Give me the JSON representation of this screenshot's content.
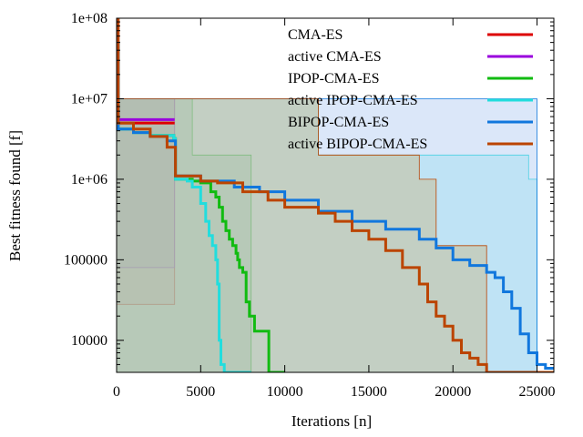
{
  "chart_data": {
    "type": "line",
    "title": "",
    "xlabel": "Iterations [n]",
    "ylabel": "Best fitness found [f]",
    "xlim": [
      0,
      26000
    ],
    "ylim": [
      4000,
      100000000
    ],
    "yscale": "log",
    "grid": false,
    "legend_position": "top-right",
    "x_ticks": [
      {
        "value": 0,
        "label": "0"
      },
      {
        "value": 5000,
        "label": "5000"
      },
      {
        "value": 10000,
        "label": "10000"
      },
      {
        "value": 15000,
        "label": "15000"
      },
      {
        "value": 20000,
        "label": "20000"
      },
      {
        "value": 25000,
        "label": "25000"
      }
    ],
    "y_ticks": [
      {
        "value": 10000,
        "label": "10000"
      },
      {
        "value": 100000,
        "label": "100000"
      },
      {
        "value": 1000000,
        "label": "1e+06"
      },
      {
        "value": 10000000,
        "label": "1e+07"
      },
      {
        "value": 100000000,
        "label": "1e+08"
      }
    ],
    "series": [
      {
        "name": "CMA-ES",
        "color": "#dd0000",
        "x": [
          0,
          50,
          3450
        ],
        "y": [
          50000000,
          5000000,
          5000000
        ],
        "band_color": "#ee88aa",
        "band_upper": {
          "x": [
            0,
            3450
          ],
          "y": [
            10000000,
            10000000
          ]
        },
        "band_lower": {
          "x": [
            0,
            3450
          ],
          "y": [
            28000,
            28000
          ]
        }
      },
      {
        "name": "active CMA-ES",
        "color": "#9900dd",
        "x": [
          0,
          50,
          3450
        ],
        "y": [
          50000000,
          5500000,
          5500000
        ],
        "band_color": "#cc99ee",
        "band_upper": {
          "x": [
            0,
            3450
          ],
          "y": [
            10000000,
            10000000
          ]
        },
        "band_lower": {
          "x": [
            0,
            3450
          ],
          "y": [
            80000,
            80000
          ]
        }
      },
      {
        "name": "IPOP-CMA-ES",
        "color": "#11bb11",
        "x": [
          0,
          100,
          1000,
          2000,
          3400,
          3500,
          4500,
          5000,
          5600,
          5900,
          6100,
          6300,
          6500,
          6700,
          6900,
          7100,
          7200,
          7300,
          7500,
          7700,
          7900,
          8200,
          9000,
          9050,
          9200,
          10000
        ],
        "y": [
          50000000,
          4200000,
          3800000,
          3500000,
          3200000,
          1000000,
          950000,
          900000,
          700000,
          600000,
          450000,
          300000,
          230000,
          180000,
          150000,
          120000,
          100000,
          80000,
          70000,
          30000,
          20000,
          13000,
          13000,
          4000,
          4000,
          4000
        ],
        "band_color": "#88cc88",
        "band_upper": {
          "x": [
            0,
            4500,
            7700,
            8000
          ],
          "y": [
            10000000,
            2000000,
            2000000,
            10000
          ]
        },
        "band_lower": {
          "x": [
            0,
            4500,
            7700,
            8000
          ],
          "y": [
            4000,
            4000,
            4000,
            4000
          ]
        }
      },
      {
        "name": "active IPOP-CMA-ES",
        "color": "#22dddd",
        "x": [
          0,
          100,
          1000,
          2000,
          3400,
          3500,
          4200,
          4500,
          5000,
          5300,
          5500,
          5700,
          5900,
          6000,
          6100,
          6200,
          6400,
          6500,
          7000,
          8000
        ],
        "y": [
          50000000,
          4200000,
          3800000,
          3500000,
          3200000,
          1000000,
          950000,
          800000,
          500000,
          300000,
          200000,
          150000,
          100000,
          50000,
          10000,
          5000,
          4000,
          4000,
          4000,
          4000
        ],
        "band_color": "#88eeee",
        "band_upper": {
          "x": [
            0,
            12000,
            17000,
            24500,
            25000
          ],
          "y": [
            10000000,
            2000000,
            2000000,
            1000000,
            5000
          ]
        },
        "band_lower": {
          "x": [
            0,
            25000
          ],
          "y": [
            4000,
            4000
          ]
        }
      },
      {
        "name": "BIPOP-CMA-ES",
        "color": "#1177dd",
        "x": [
          0,
          100,
          1000,
          2000,
          3000,
          3500,
          5000,
          7000,
          8500,
          10000,
          12000,
          14000,
          16000,
          18000,
          19000,
          20000,
          21000,
          22000,
          22500,
          23000,
          23500,
          24000,
          24500,
          25000,
          25500,
          26000
        ],
        "y": [
          50000000,
          4200000,
          3800000,
          3400000,
          3000000,
          1100000,
          950000,
          800000,
          700000,
          550000,
          400000,
          300000,
          240000,
          180000,
          140000,
          100000,
          85000,
          70000,
          60000,
          40000,
          25000,
          12000,
          7000,
          5000,
          4500,
          4500
        ],
        "band_color": "#99bbee",
        "band_upper": {
          "x": [
            0,
            25000
          ],
          "y": [
            10000000,
            5000000
          ]
        },
        "band_lower": {
          "x": [
            0,
            25000
          ],
          "y": [
            4000,
            4000
          ]
        }
      },
      {
        "name": "active BIPOP-CMA-ES",
        "color": "#bb4400",
        "x": [
          0,
          100,
          1000,
          2000,
          3000,
          3500,
          5000,
          6000,
          7500,
          9000,
          10000,
          12000,
          13000,
          14000,
          15000,
          16000,
          17000,
          18000,
          18500,
          19000,
          19500,
          20000,
          20500,
          21000,
          21500,
          22000,
          26000
        ],
        "y": [
          100000000,
          5000000,
          4200000,
          3400000,
          2500000,
          1100000,
          950000,
          900000,
          700000,
          550000,
          450000,
          380000,
          300000,
          230000,
          180000,
          130000,
          80000,
          50000,
          30000,
          20000,
          15000,
          10000,
          7000,
          6000,
          5000,
          4000,
          4000
        ],
        "band_color": "#ccaa66",
        "band_upper": {
          "x": [
            0,
            12000,
            18000,
            19000,
            22000
          ],
          "y": [
            10000000,
            2000000,
            1000000,
            150000,
            5000
          ]
        },
        "band_lower": {
          "x": [
            0,
            22000
          ],
          "y": [
            4000,
            4000
          ]
        }
      }
    ]
  }
}
